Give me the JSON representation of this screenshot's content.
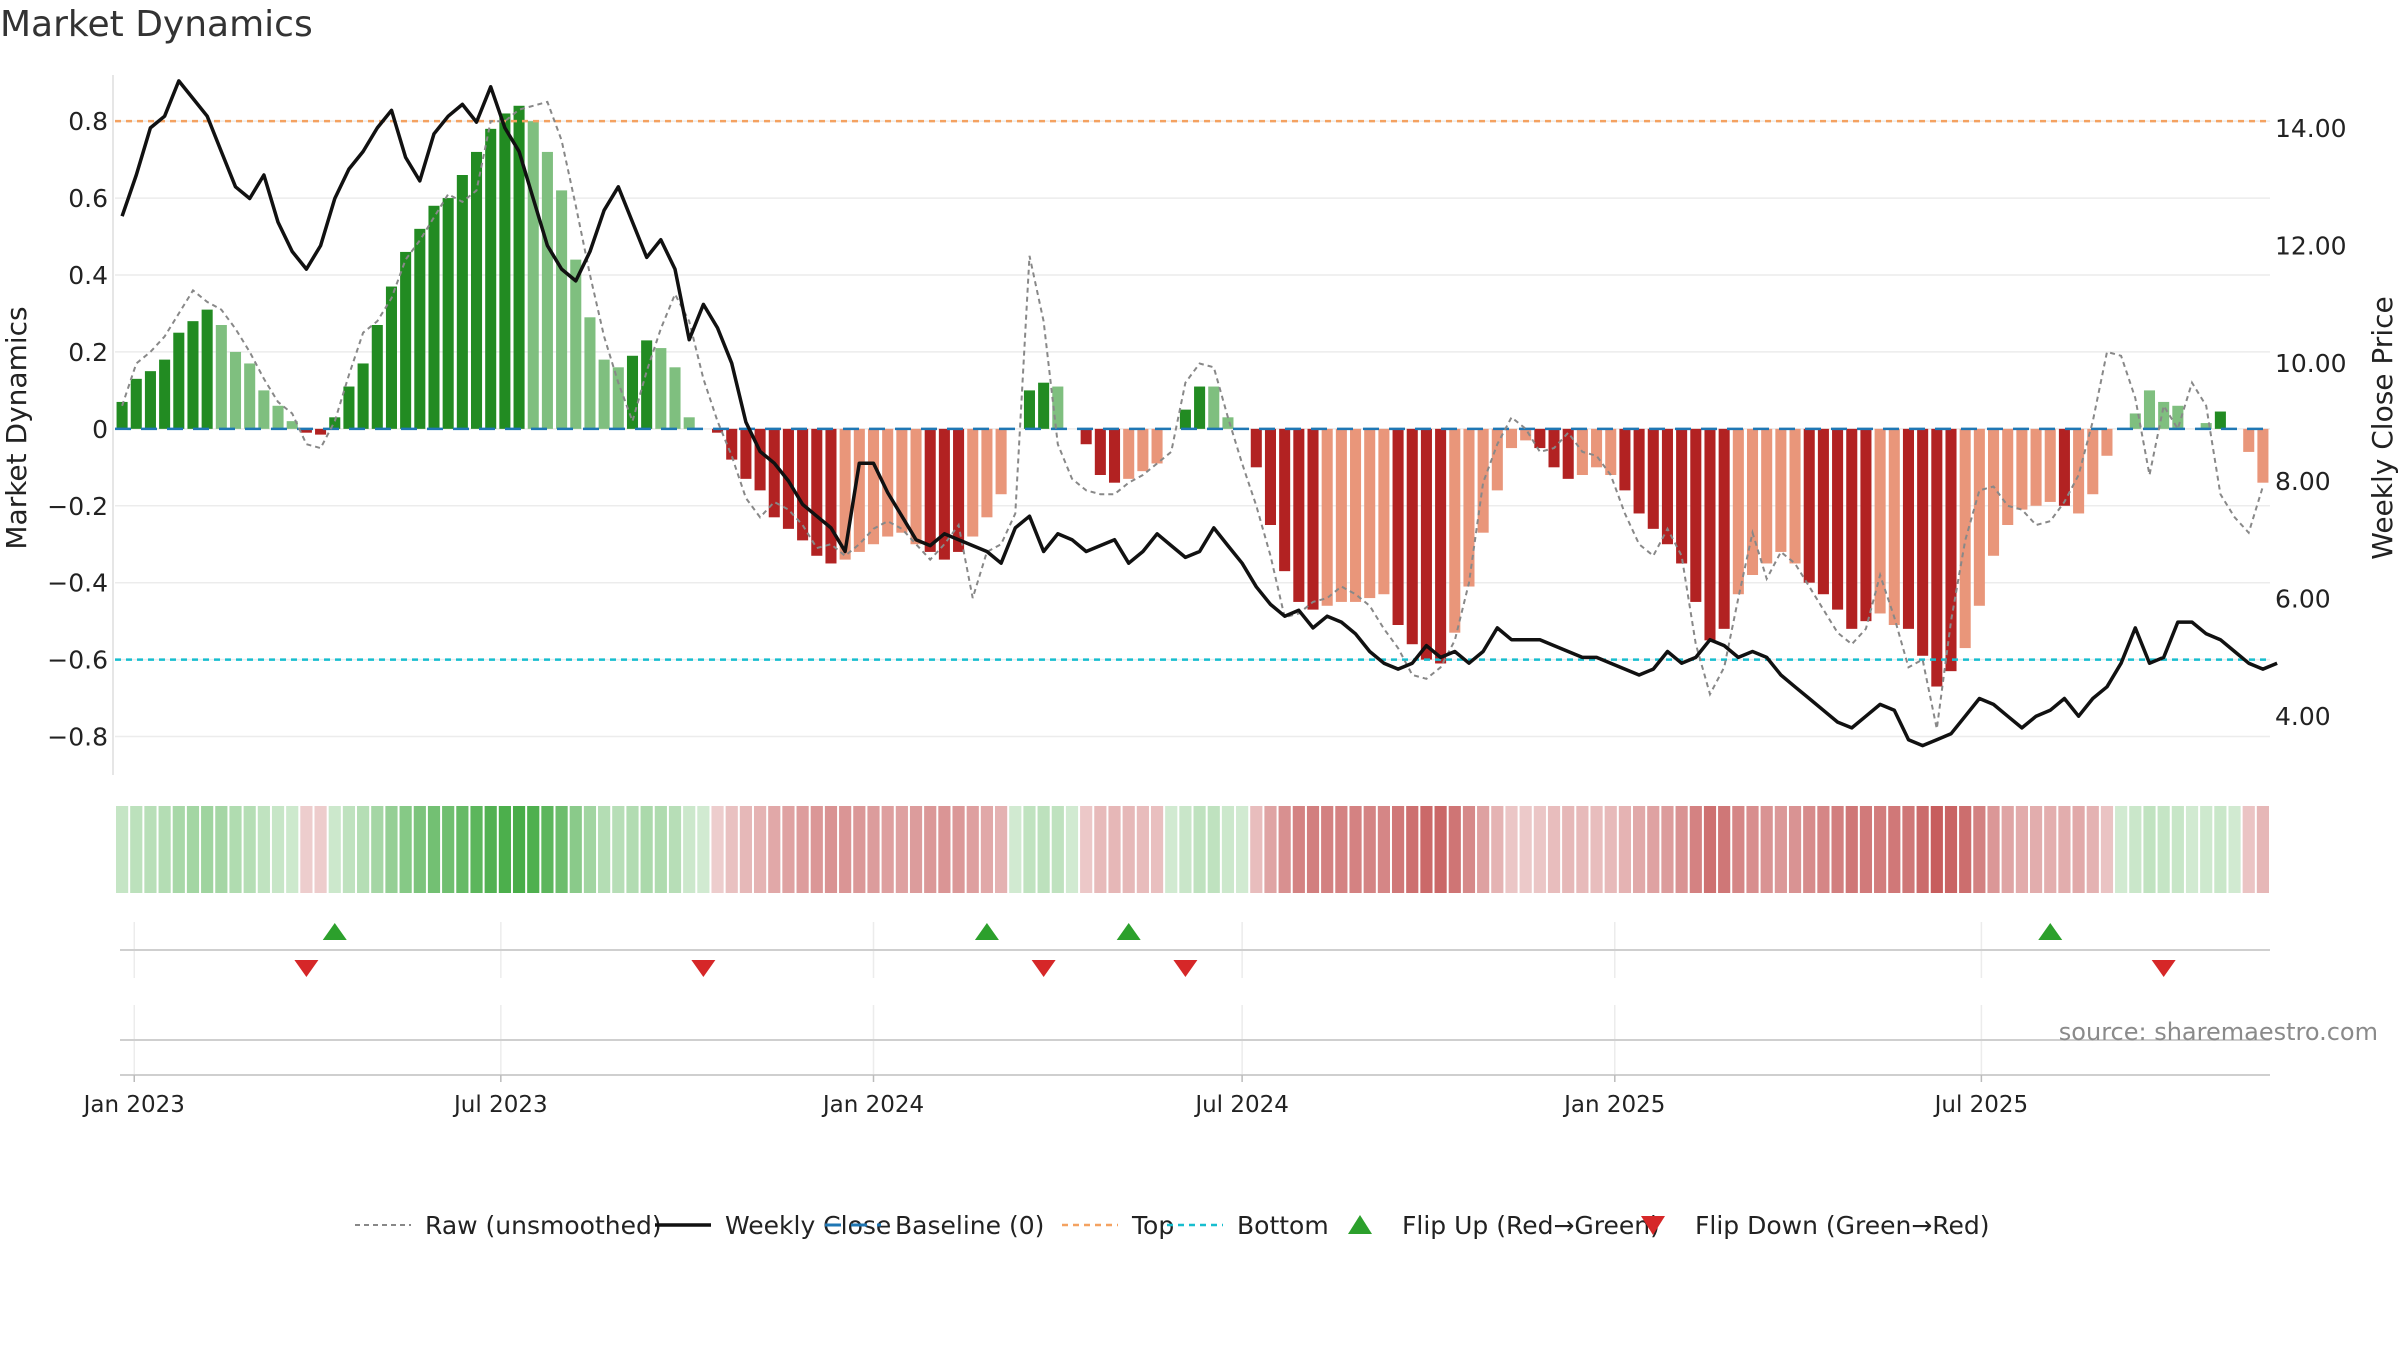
{
  "chart_data": {
    "type": "bar",
    "title": "Market Dynamics",
    "ylabel": "Market Dynamics",
    "y2label": "Weekly Close Price",
    "source": "source: sharemaestro.com",
    "ylim": [
      -0.9,
      0.92
    ],
    "y2lim": [
      3.0,
      14.9
    ],
    "yticks": [
      "0.8",
      "0.6",
      "0.4",
      "0.2",
      "0",
      "−0.2",
      "−0.4",
      "−0.6",
      "−0.8"
    ],
    "yticks_values": [
      0.8,
      0.6,
      0.4,
      0.2,
      0,
      -0.2,
      -0.4,
      -0.6,
      -0.8
    ],
    "y2ticks": [
      "14.00",
      "12.00",
      "10.00",
      "8.00",
      "6.00",
      "4.00"
    ],
    "y2ticks_values": [
      14,
      12,
      10,
      8,
      6,
      4
    ],
    "xticks": [
      {
        "date": "2023-01-01",
        "label": "Jan 2023"
      },
      {
        "date": "2023-07-01",
        "label": "Jul 2023"
      },
      {
        "date": "2024-01-01",
        "label": "Jan 2024"
      },
      {
        "date": "2024-07-01",
        "label": "Jul 2024"
      },
      {
        "date": "2025-01-01",
        "label": "Jan 2025"
      },
      {
        "date": "2025-07-01",
        "label": "Jul 2025"
      }
    ],
    "start_date": "2022-12-26",
    "top_level": 0.8,
    "bottom_level": -0.6,
    "baseline": 0,
    "colors": {
      "green_strong": "#228b22",
      "green_weak": "#7fbf7f",
      "red_strong": "#b22222",
      "red_weak": "#e9967a",
      "price": "#111111",
      "raw": "#888888",
      "baseline": "#1f77b4",
      "top": "#f4a261",
      "bottom": "#17becf",
      "flip_up": "#2ca02c",
      "flip_down": "#d62728"
    },
    "dynamics": [
      0.07,
      0.13,
      0.15,
      0.18,
      0.25,
      0.28,
      0.31,
      0.27,
      0.2,
      0.17,
      0.1,
      0.06,
      0.02,
      -0.01,
      -0.015,
      0.03,
      0.11,
      0.17,
      0.27,
      0.37,
      0.46,
      0.52,
      0.58,
      0.6,
      0.66,
      0.72,
      0.78,
      0.82,
      0.84,
      0.8,
      0.72,
      0.62,
      0.44,
      0.29,
      0.18,
      0.16,
      0.19,
      0.23,
      0.21,
      0.16,
      0.03,
      0.0,
      -0.01,
      -0.08,
      -0.13,
      -0.16,
      -0.23,
      -0.26,
      -0.29,
      -0.33,
      -0.35,
      -0.34,
      -0.32,
      -0.3,
      -0.28,
      -0.27,
      -0.3,
      -0.32,
      -0.34,
      -0.32,
      -0.28,
      -0.23,
      -0.17,
      0.0,
      0.1,
      0.12,
      0.11,
      0.0,
      -0.04,
      -0.12,
      -0.14,
      -0.13,
      -0.11,
      -0.09,
      0.0,
      0.05,
      0.11,
      0.11,
      0.03,
      0.0,
      -0.1,
      -0.25,
      -0.37,
      -0.45,
      -0.47,
      -0.46,
      -0.45,
      -0.45,
      -0.44,
      -0.43,
      -0.51,
      -0.56,
      -0.6,
      -0.61,
      -0.53,
      -0.41,
      -0.27,
      -0.16,
      -0.05,
      -0.03,
      -0.05,
      -0.1,
      -0.13,
      -0.12,
      -0.1,
      -0.12,
      -0.16,
      -0.22,
      -0.26,
      -0.3,
      -0.35,
      -0.45,
      -0.55,
      -0.52,
      -0.43,
      -0.38,
      -0.35,
      -0.32,
      -0.35,
      -0.4,
      -0.43,
      -0.47,
      -0.52,
      -0.5,
      -0.48,
      -0.51,
      -0.52,
      -0.59,
      -0.67,
      -0.63,
      -0.57,
      -0.46,
      -0.33,
      -0.25,
      -0.21,
      -0.2,
      -0.19,
      -0.2,
      -0.22,
      -0.17,
      -0.07,
      0.0,
      0.04,
      0.1,
      0.07,
      0.06,
      0.0,
      0.015,
      0.045,
      0.0,
      -0.06,
      -0.14
    ],
    "dynamics_strength": [
      "s",
      "s",
      "s",
      "s",
      "s",
      "s",
      "s",
      "w",
      "w",
      "w",
      "w",
      "w",
      "w",
      "s",
      "s",
      "s",
      "s",
      "s",
      "s",
      "s",
      "s",
      "s",
      "s",
      "s",
      "s",
      "s",
      "s",
      "s",
      "s",
      "w",
      "w",
      "w",
      "w",
      "w",
      "w",
      "w",
      "s",
      "s",
      "w",
      "w",
      "w",
      "w",
      "s",
      "s",
      "s",
      "s",
      "s",
      "s",
      "s",
      "s",
      "s",
      "w",
      "w",
      "w",
      "w",
      "w",
      "w",
      "s",
      "s",
      "s",
      "w",
      "w",
      "w",
      "w",
      "s",
      "s",
      "w",
      "w",
      "s",
      "s",
      "s",
      "w",
      "w",
      "w",
      "w",
      "s",
      "s",
      "w",
      "w",
      "w",
      "s",
      "s",
      "s",
      "s",
      "s",
      "w",
      "w",
      "w",
      "w",
      "w",
      "s",
      "s",
      "s",
      "s",
      "w",
      "w",
      "w",
      "w",
      "w",
      "w",
      "s",
      "s",
      "s",
      "w",
      "w",
      "w",
      "s",
      "s",
      "s",
      "s",
      "s",
      "s",
      "s",
      "s",
      "w",
      "w",
      "w",
      "w",
      "w",
      "s",
      "s",
      "s",
      "s",
      "s",
      "w",
      "w",
      "s",
      "s",
      "s",
      "s",
      "w",
      "w",
      "w",
      "w",
      "w",
      "w",
      "w",
      "s",
      "w",
      "w",
      "w",
      "s",
      "w",
      "w",
      "w",
      "w",
      "s",
      "w",
      "s",
      "s"
    ],
    "raw": [
      0.06,
      0.17,
      0.2,
      0.24,
      0.3,
      0.36,
      0.33,
      0.31,
      0.26,
      0.2,
      0.13,
      0.07,
      0.04,
      -0.04,
      -0.05,
      0.02,
      0.14,
      0.25,
      0.28,
      0.34,
      0.44,
      0.49,
      0.55,
      0.61,
      0.59,
      0.62,
      0.8,
      0.8,
      0.83,
      0.84,
      0.85,
      0.75,
      0.58,
      0.4,
      0.24,
      0.12,
      0.02,
      0.15,
      0.26,
      0.35,
      0.28,
      0.13,
      0.02,
      -0.07,
      -0.18,
      -0.23,
      -0.19,
      -0.21,
      -0.25,
      -0.31,
      -0.3,
      -0.33,
      -0.3,
      -0.26,
      -0.24,
      -0.26,
      -0.3,
      -0.34,
      -0.3,
      -0.25,
      -0.44,
      -0.32,
      -0.3,
      -0.22,
      0.45,
      0.28,
      -0.04,
      -0.13,
      -0.16,
      -0.17,
      -0.17,
      -0.14,
      -0.12,
      -0.09,
      -0.06,
      0.12,
      0.17,
      0.16,
      0.03,
      -0.09,
      -0.2,
      -0.33,
      -0.49,
      -0.48,
      -0.45,
      -0.44,
      -0.41,
      -0.43,
      -0.46,
      -0.52,
      -0.57,
      -0.64,
      -0.65,
      -0.62,
      -0.55,
      -0.4,
      -0.14,
      -0.04,
      0.03,
      0.0,
      -0.06,
      -0.05,
      -0.01,
      -0.06,
      -0.07,
      -0.12,
      -0.22,
      -0.3,
      -0.33,
      -0.26,
      -0.33,
      -0.56,
      -0.69,
      -0.62,
      -0.44,
      -0.27,
      -0.39,
      -0.32,
      -0.35,
      -0.41,
      -0.47,
      -0.53,
      -0.56,
      -0.52,
      -0.38,
      -0.49,
      -0.62,
      -0.6,
      -0.78,
      -0.5,
      -0.29,
      -0.16,
      -0.15,
      -0.2,
      -0.21,
      -0.25,
      -0.24,
      -0.19,
      -0.12,
      0.02,
      0.2,
      0.19,
      0.08,
      -0.12,
      0.06,
      0.0,
      0.12,
      0.06,
      -0.17,
      -0.23,
      -0.27,
      -0.15
    ],
    "price": [
      12.5,
      13.2,
      14.0,
      14.2,
      14.8,
      14.5,
      14.2,
      13.6,
      13.0,
      12.8,
      13.2,
      12.4,
      11.9,
      11.6,
      12.0,
      12.8,
      13.3,
      13.6,
      14.0,
      14.3,
      13.5,
      13.1,
      13.9,
      14.2,
      14.4,
      14.1,
      14.7,
      14.0,
      13.6,
      12.8,
      12.0,
      11.6,
      11.4,
      11.9,
      12.6,
      13.0,
      12.4,
      11.8,
      12.1,
      11.6,
      10.4,
      11.0,
      10.6,
      10.0,
      9.0,
      8.5,
      8.3,
      8.0,
      7.6,
      7.4,
      7.2,
      6.8,
      8.3,
      8.3,
      7.8,
      7.4,
      7.0,
      6.9,
      7.1,
      7.0,
      6.9,
      6.8,
      6.6,
      7.2,
      7.4,
      6.8,
      7.1,
      7.0,
      6.8,
      6.9,
      7.0,
      6.6,
      6.8,
      7.1,
      6.9,
      6.7,
      6.8,
      7.2,
      6.9,
      6.6,
      6.2,
      5.9,
      5.7,
      5.8,
      5.5,
      5.7,
      5.6,
      5.4,
      5.1,
      4.9,
      4.8,
      4.9,
      5.2,
      5.0,
      5.1,
      4.9,
      5.1,
      5.5,
      5.3,
      5.3,
      5.3,
      5.2,
      5.1,
      5.0,
      5.0,
      4.9,
      4.8,
      4.7,
      4.8,
      5.1,
      4.9,
      5.0,
      5.3,
      5.2,
      5.0,
      5.1,
      5.0,
      4.7,
      4.5,
      4.3,
      4.1,
      3.9,
      3.8,
      4.0,
      4.2,
      4.1,
      3.6,
      3.5,
      3.6,
      3.7,
      4.0,
      4.3,
      4.2,
      4.0,
      3.8,
      4.0,
      4.1,
      4.3,
      4.0,
      4.3,
      4.5,
      4.9,
      5.5,
      4.9,
      5.0,
      5.6,
      5.6,
      5.4,
      5.3,
      5.1,
      4.9,
      4.8,
      4.9
    ],
    "flips": [
      {
        "week": 13,
        "dir": "down"
      },
      {
        "week": 15,
        "dir": "up"
      },
      {
        "week": 41,
        "dir": "down"
      },
      {
        "week": 61,
        "dir": "up"
      },
      {
        "week": 65,
        "dir": "down"
      },
      {
        "week": 71,
        "dir": "up"
      },
      {
        "week": 75,
        "dir": "down"
      },
      {
        "week": 136,
        "dir": "up"
      },
      {
        "week": 144,
        "dir": "down"
      }
    ],
    "legend": [
      {
        "label": "Raw (unsmoothed)",
        "kind": "dashed",
        "color": "#888888"
      },
      {
        "label": "Weekly Close",
        "kind": "solid",
        "color": "#111111"
      },
      {
        "label": "Baseline (0)",
        "kind": "longdash",
        "color": "#1f77b4"
      },
      {
        "label": "Top",
        "kind": "dotted",
        "color": "#f4a261"
      },
      {
        "label": "Bottom",
        "kind": "dotted",
        "color": "#17becf"
      },
      {
        "label": "Flip Up (Red→Green)",
        "kind": "tri-up",
        "color": "#2ca02c"
      },
      {
        "label": "Flip Down (Green→Red)",
        "kind": "tri-down",
        "color": "#d62728"
      }
    ],
    "legend_placement": "bottom-center",
    "grid": true
  }
}
